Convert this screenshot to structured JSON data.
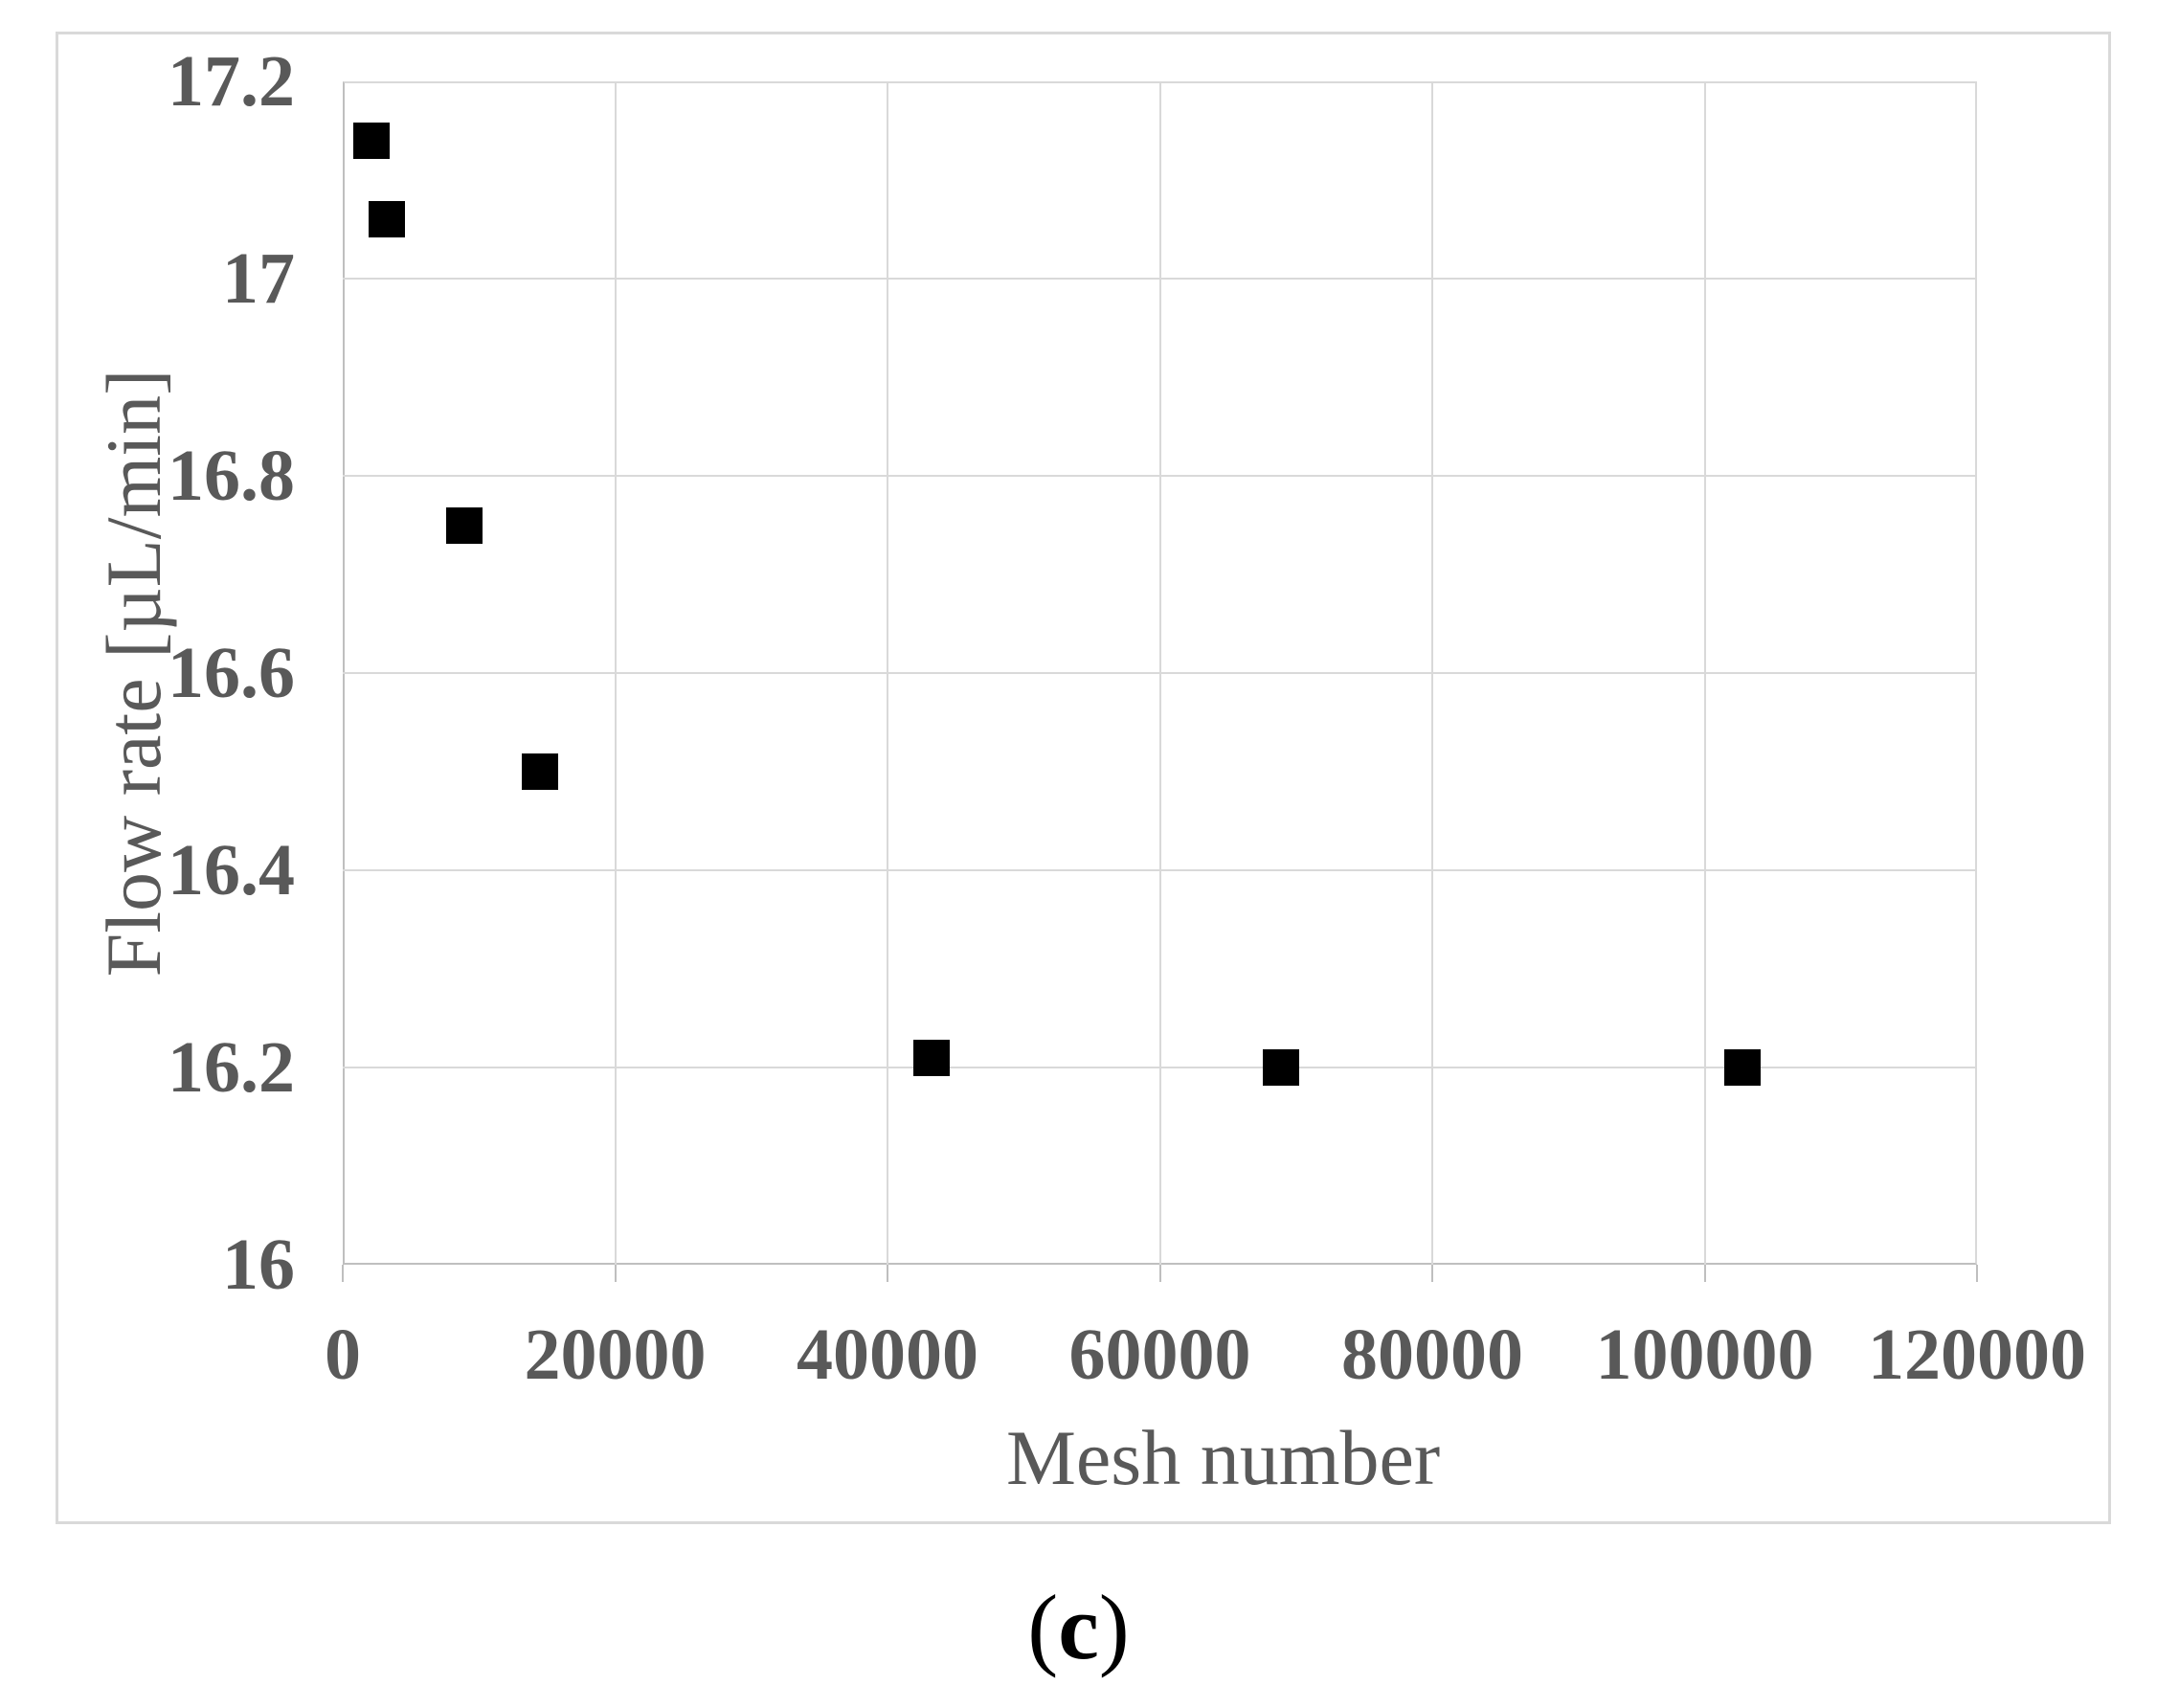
{
  "figure": {
    "caption": {
      "open": "(",
      "letter": "c",
      "close": ")"
    },
    "colors": {
      "background": "#ffffff",
      "frame_border": "#d9d9d9",
      "gridline": "#d9d9d9",
      "axis_line": "#bfbfbf",
      "tick_text": "#595959",
      "axis_title_text": "#595959",
      "marker": "#000000",
      "caption_text": "#000000"
    }
  },
  "chart_data": {
    "type": "scatter",
    "title": "",
    "xlabel": "Mesh number",
    "ylabel": "Flow rate [µL/min]",
    "xlim": [
      0,
      120000
    ],
    "ylim": [
      16,
      17.2
    ],
    "x_ticks": [
      0,
      20000,
      40000,
      60000,
      80000,
      100000,
      120000
    ],
    "x_tick_labels": [
      "0",
      "20000",
      "40000",
      "60000",
      "80000",
      "100000",
      "120000"
    ],
    "y_ticks": [
      16,
      16.2,
      16.4,
      16.6,
      16.8,
      17,
      17.2
    ],
    "y_tick_labels": [
      "16",
      "16.2",
      "16.4",
      "16.6",
      "16.8",
      "17",
      "17.2"
    ],
    "grid": true,
    "legend": false,
    "marker": "square",
    "points": [
      {
        "x": 2100,
        "y": 17.14
      },
      {
        "x": 3200,
        "y": 17.06
      },
      {
        "x": 8900,
        "y": 16.75
      },
      {
        "x": 14500,
        "y": 16.5
      },
      {
        "x": 43200,
        "y": 16.21
      },
      {
        "x": 68900,
        "y": 16.2
      },
      {
        "x": 102800,
        "y": 16.2
      }
    ]
  }
}
